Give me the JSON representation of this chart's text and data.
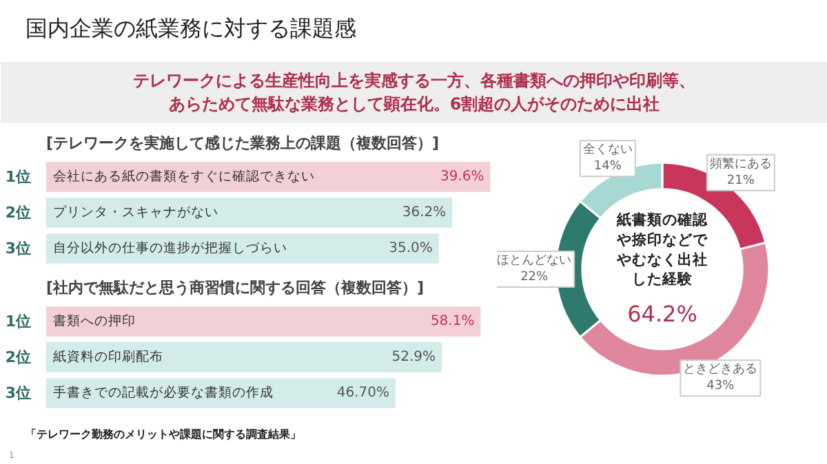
{
  "chart_data": [
    {
      "type": "other",
      "title": "国内企業の紙業務に対する課題感",
      "subtitle": "テレワークによる生産性向上を実感する一方、各種書類への押印や印刷等、あらためて無駄な業務として顕在化。6割超の人がそのために出社",
      "annotations": [
        "「テレワーク勤務のメリットや課題に関する調査結果」",
        "1"
      ]
    },
    {
      "type": "bar",
      "orientation": "horizontal",
      "title": "[テレワークを実施して感じた業務上の課題（複数回答）]",
      "categories": [
        "会社にある紙の書類をすぐに確認できない",
        "プリンタ・スキャナがない",
        "自分以外の仕事の進捗が把握しづらい"
      ],
      "values": [
        39.6,
        36.2,
        35.0
      ],
      "value_labels": [
        "39.6%",
        "36.2%",
        "35.0%"
      ],
      "colors": [
        "#f3cfd8",
        "#d3ece9",
        "#d3ece9"
      ],
      "xlim": [
        0,
        40
      ],
      "annotations": [
        "1位",
        "2位",
        "3位"
      ],
      "tick_labels": "y"
    },
    {
      "type": "bar",
      "orientation": "horizontal",
      "title": "[社内で無駄だと思う商習慣に関する回答（複数回答）]",
      "categories": [
        "書類への押印",
        "紙資料の印刷配布",
        "手書きでの記載が必要な書類の作成"
      ],
      "values": [
        58.1,
        52.9,
        46.7
      ],
      "value_labels": [
        "58.1%",
        "52.9%",
        "46.70%"
      ],
      "colors": [
        "#f3cfd8",
        "#d3ece9",
        "#d3ece9"
      ],
      "xlim": [
        0,
        60
      ],
      "annotations": [
        "1位",
        "2位",
        "3位"
      ],
      "tick_labels": "y"
    },
    {
      "type": "donut",
      "categories": [
        "頻繁にある",
        "ときどきある",
        "ほとんどない",
        "全くない"
      ],
      "values": [
        21,
        43,
        22,
        14
      ],
      "colors": [
        "#c8365c",
        "#e0879d",
        "#2e7a6e",
        "#a6d9d4"
      ],
      "value_labels": [
        "21%",
        "43%",
        "22%",
        "14%"
      ],
      "annotations": [
        "紙書類の確認や捺印などでやむなく出社した経験",
        "64.2%"
      ]
    }
  ]
}
